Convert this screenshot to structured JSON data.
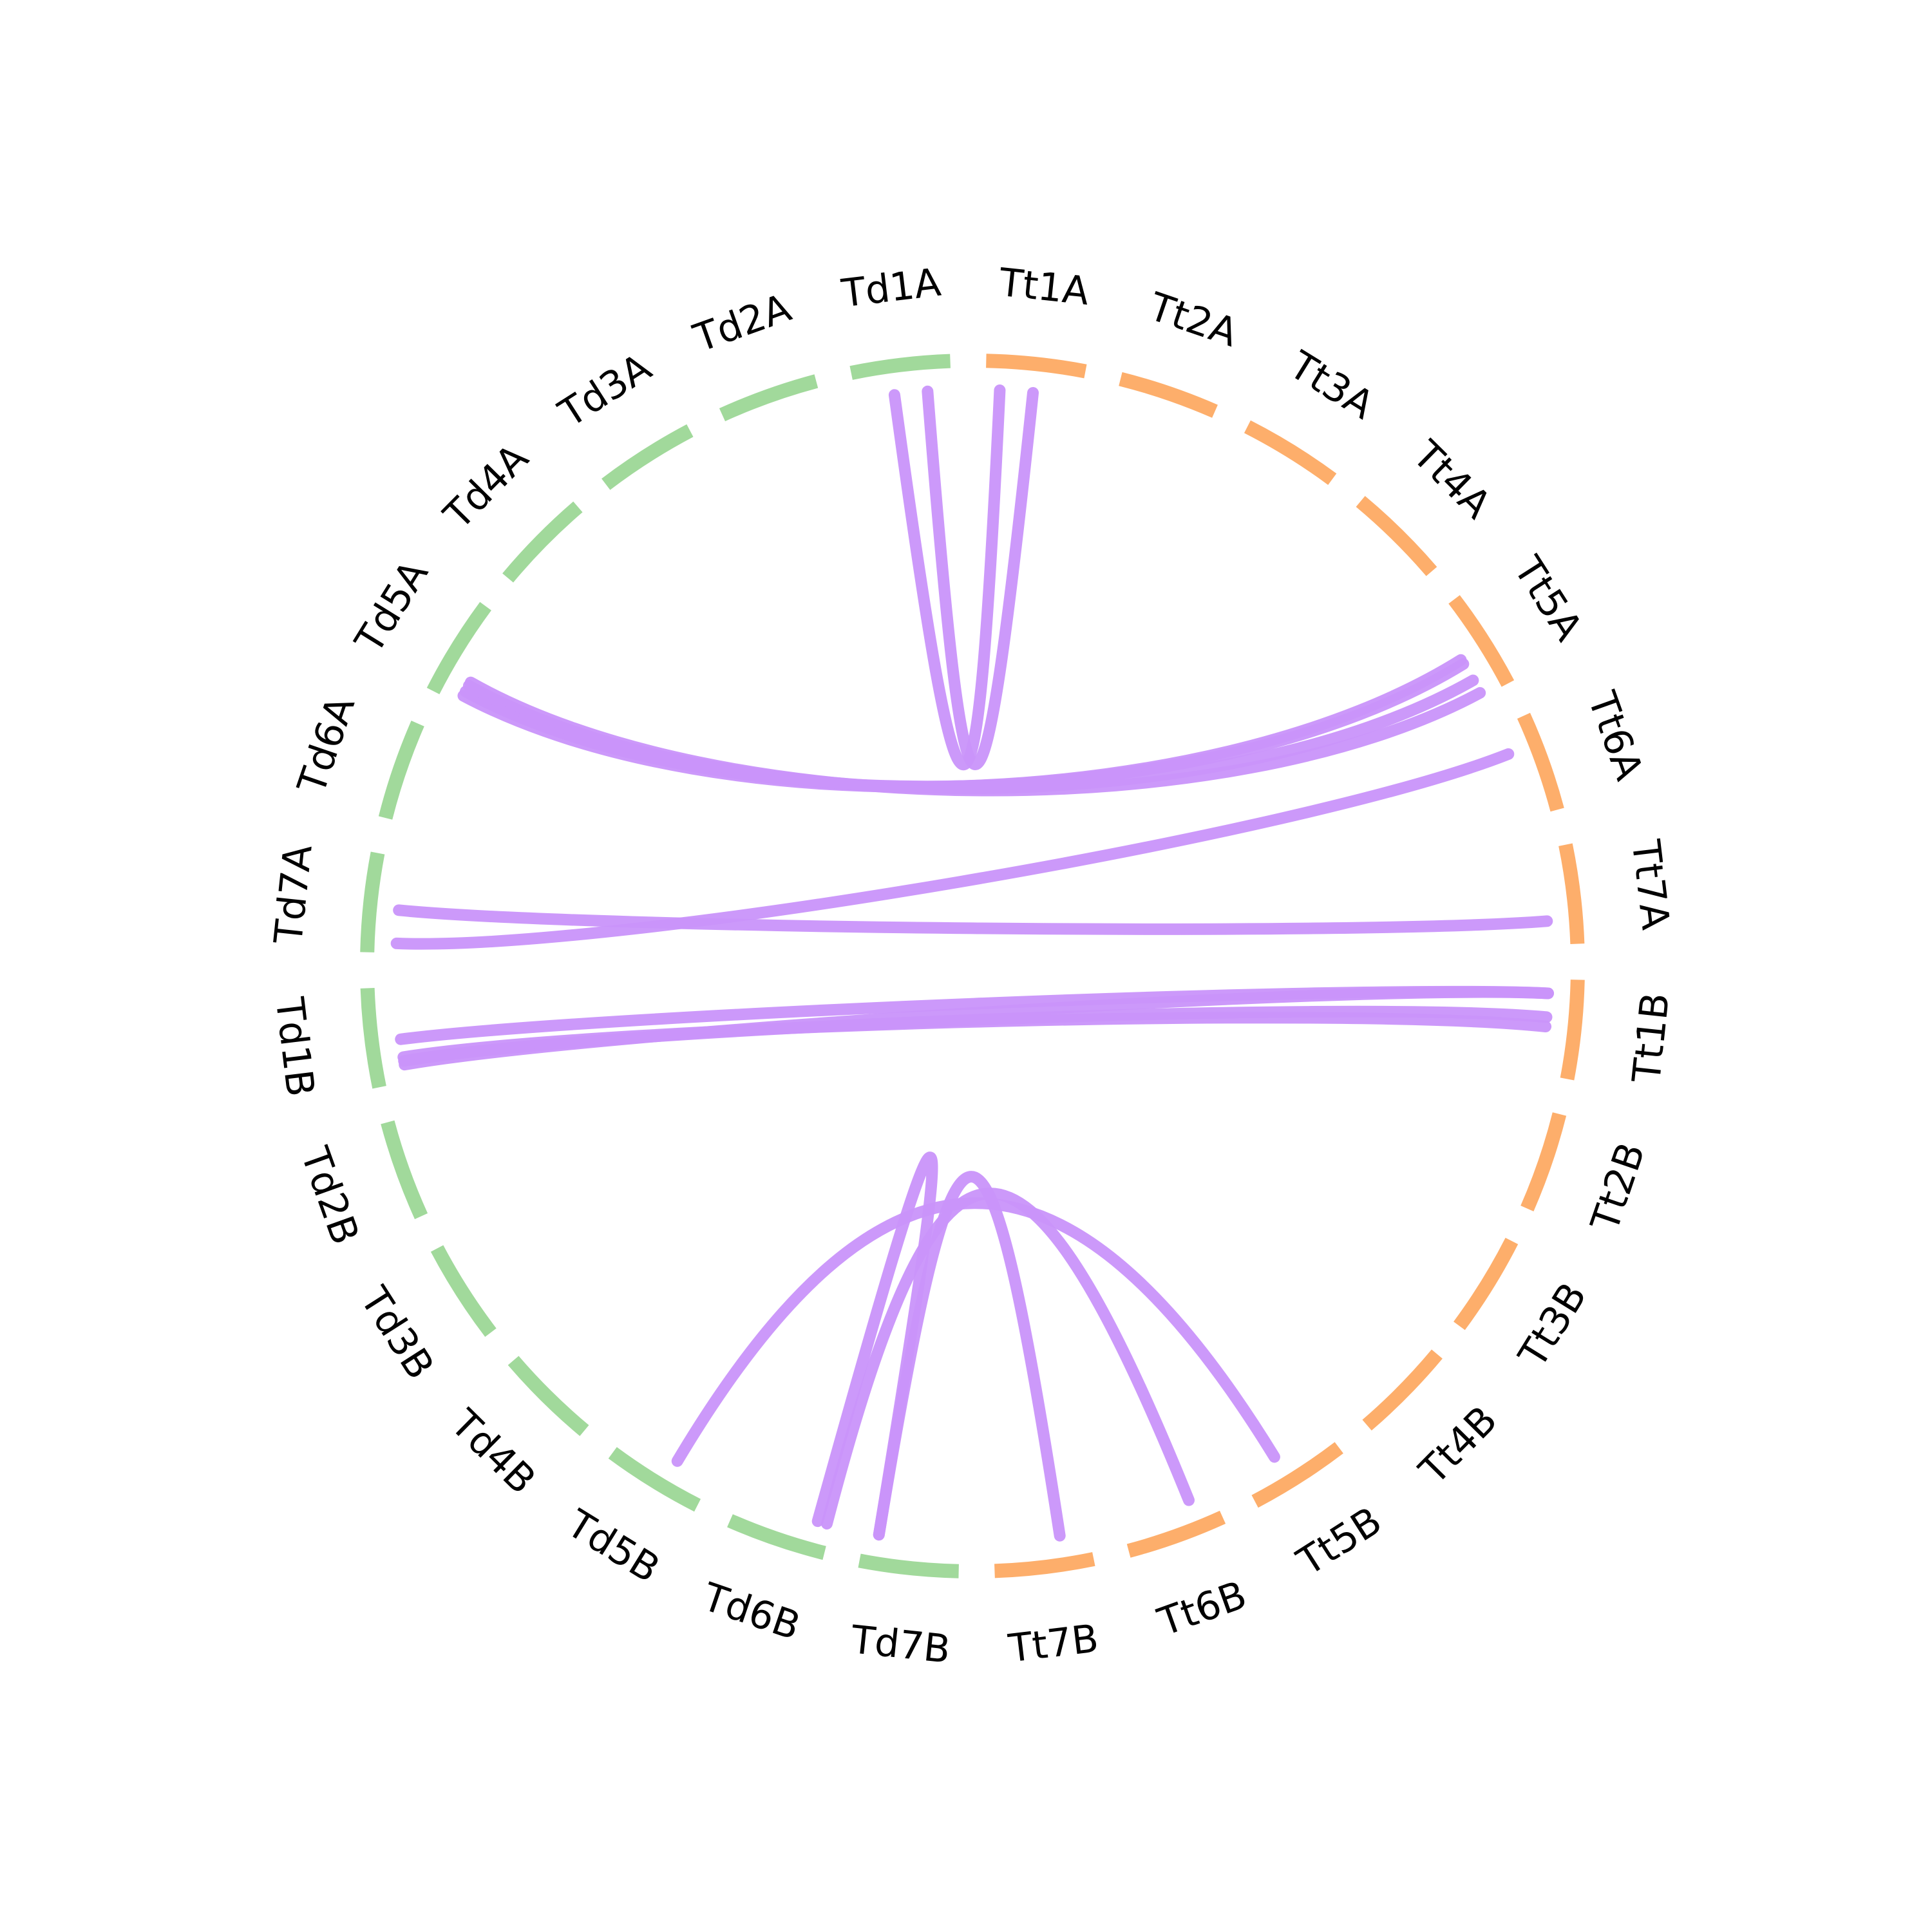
{
  "chart_data": {
    "type": "chord",
    "colors": {
      "Td": "#a1d99b",
      "Tt": "#fdae6b",
      "link": "#c994fa"
    },
    "chromosomes": [
      {
        "name": "Tt1A",
        "group": "Tt"
      },
      {
        "name": "Tt2A",
        "group": "Tt"
      },
      {
        "name": "Tt3A",
        "group": "Tt"
      },
      {
        "name": "Tt4A",
        "group": "Tt"
      },
      {
        "name": "Tt5A",
        "group": "Tt"
      },
      {
        "name": "Tt6A",
        "group": "Tt"
      },
      {
        "name": "Tt7A",
        "group": "Tt"
      },
      {
        "name": "Tt1B",
        "group": "Tt"
      },
      {
        "name": "Tt2B",
        "group": "Tt"
      },
      {
        "name": "Tt3B",
        "group": "Tt"
      },
      {
        "name": "Tt4B",
        "group": "Tt"
      },
      {
        "name": "Tt5B",
        "group": "Tt"
      },
      {
        "name": "Tt6B",
        "group": "Tt"
      },
      {
        "name": "Tt7B",
        "group": "Tt"
      },
      {
        "name": "Td7B",
        "group": "Td"
      },
      {
        "name": "Td6B",
        "group": "Td"
      },
      {
        "name": "Td5B",
        "group": "Td"
      },
      {
        "name": "Td4B",
        "group": "Td"
      },
      {
        "name": "Td3B",
        "group": "Td"
      },
      {
        "name": "Td2B",
        "group": "Td"
      },
      {
        "name": "Td1B",
        "group": "Td"
      },
      {
        "name": "Td7A",
        "group": "Td"
      },
      {
        "name": "Td6A",
        "group": "Td"
      },
      {
        "name": "Td5A",
        "group": "Td"
      },
      {
        "name": "Td4A",
        "group": "Td"
      },
      {
        "name": "Td3A",
        "group": "Td"
      },
      {
        "name": "Td2A",
        "group": "Td"
      },
      {
        "name": "Td1A",
        "group": "Td"
      }
    ],
    "links": [
      {
        "source": "Td1A",
        "target": "Tt1A",
        "source_pos": 0.4,
        "target_pos": 0.15
      },
      {
        "source": "Td1A",
        "target": "Tt1A",
        "source_pos": 0.75,
        "target_pos": 0.5
      },
      {
        "source": "Td5A",
        "target": "Tt5A",
        "source_pos": 0.1,
        "target_pos": 0.55
      },
      {
        "source": "Td5A",
        "target": "Tt5A",
        "source_pos": 0.15,
        "target_pos": 0.6
      },
      {
        "source": "Td5A",
        "target": "Tt5A",
        "source_pos": 0.22,
        "target_pos": 0.8
      },
      {
        "source": "Td5A",
        "target": "Tt5A",
        "source_pos": 0.26,
        "target_pos": 0.95
      },
      {
        "source": "Td7A",
        "target": "Tt6A",
        "source_pos": 0.1,
        "target_pos": 0.3
      },
      {
        "source": "Td7A",
        "target": "Tt7A",
        "source_pos": 0.45,
        "target_pos": 0.75
      },
      {
        "source": "Td1B",
        "target": "Tt1B",
        "source_pos": 0.18,
        "target_pos": 0.15
      },
      {
        "source": "Td1B",
        "target": "Tt1B",
        "source_pos": 0.22,
        "target_pos": 0.4
      },
      {
        "source": "Td1B",
        "target": "Tt1B",
        "source_pos": 0.26,
        "target_pos": 0.5
      },
      {
        "source": "Td1B",
        "target": "Tt1B",
        "source_pos": 0.45,
        "target_pos": 0.15
      },
      {
        "source": "Td5B",
        "target": "Tt5B",
        "source_pos": 0.4,
        "target_pos": 0.6
      },
      {
        "source": "Td6B",
        "target": "Tt6B",
        "source_pos": 0.05,
        "target_pos": 0.25
      },
      {
        "source": "Td7B",
        "target": "Tt7B",
        "source_pos": 0.85,
        "target_pos": 0.3
      },
      {
        "source": "Td6B",
        "target": "Td7B",
        "source_pos": 0.15,
        "target_pos": 0.85
      }
    ]
  }
}
